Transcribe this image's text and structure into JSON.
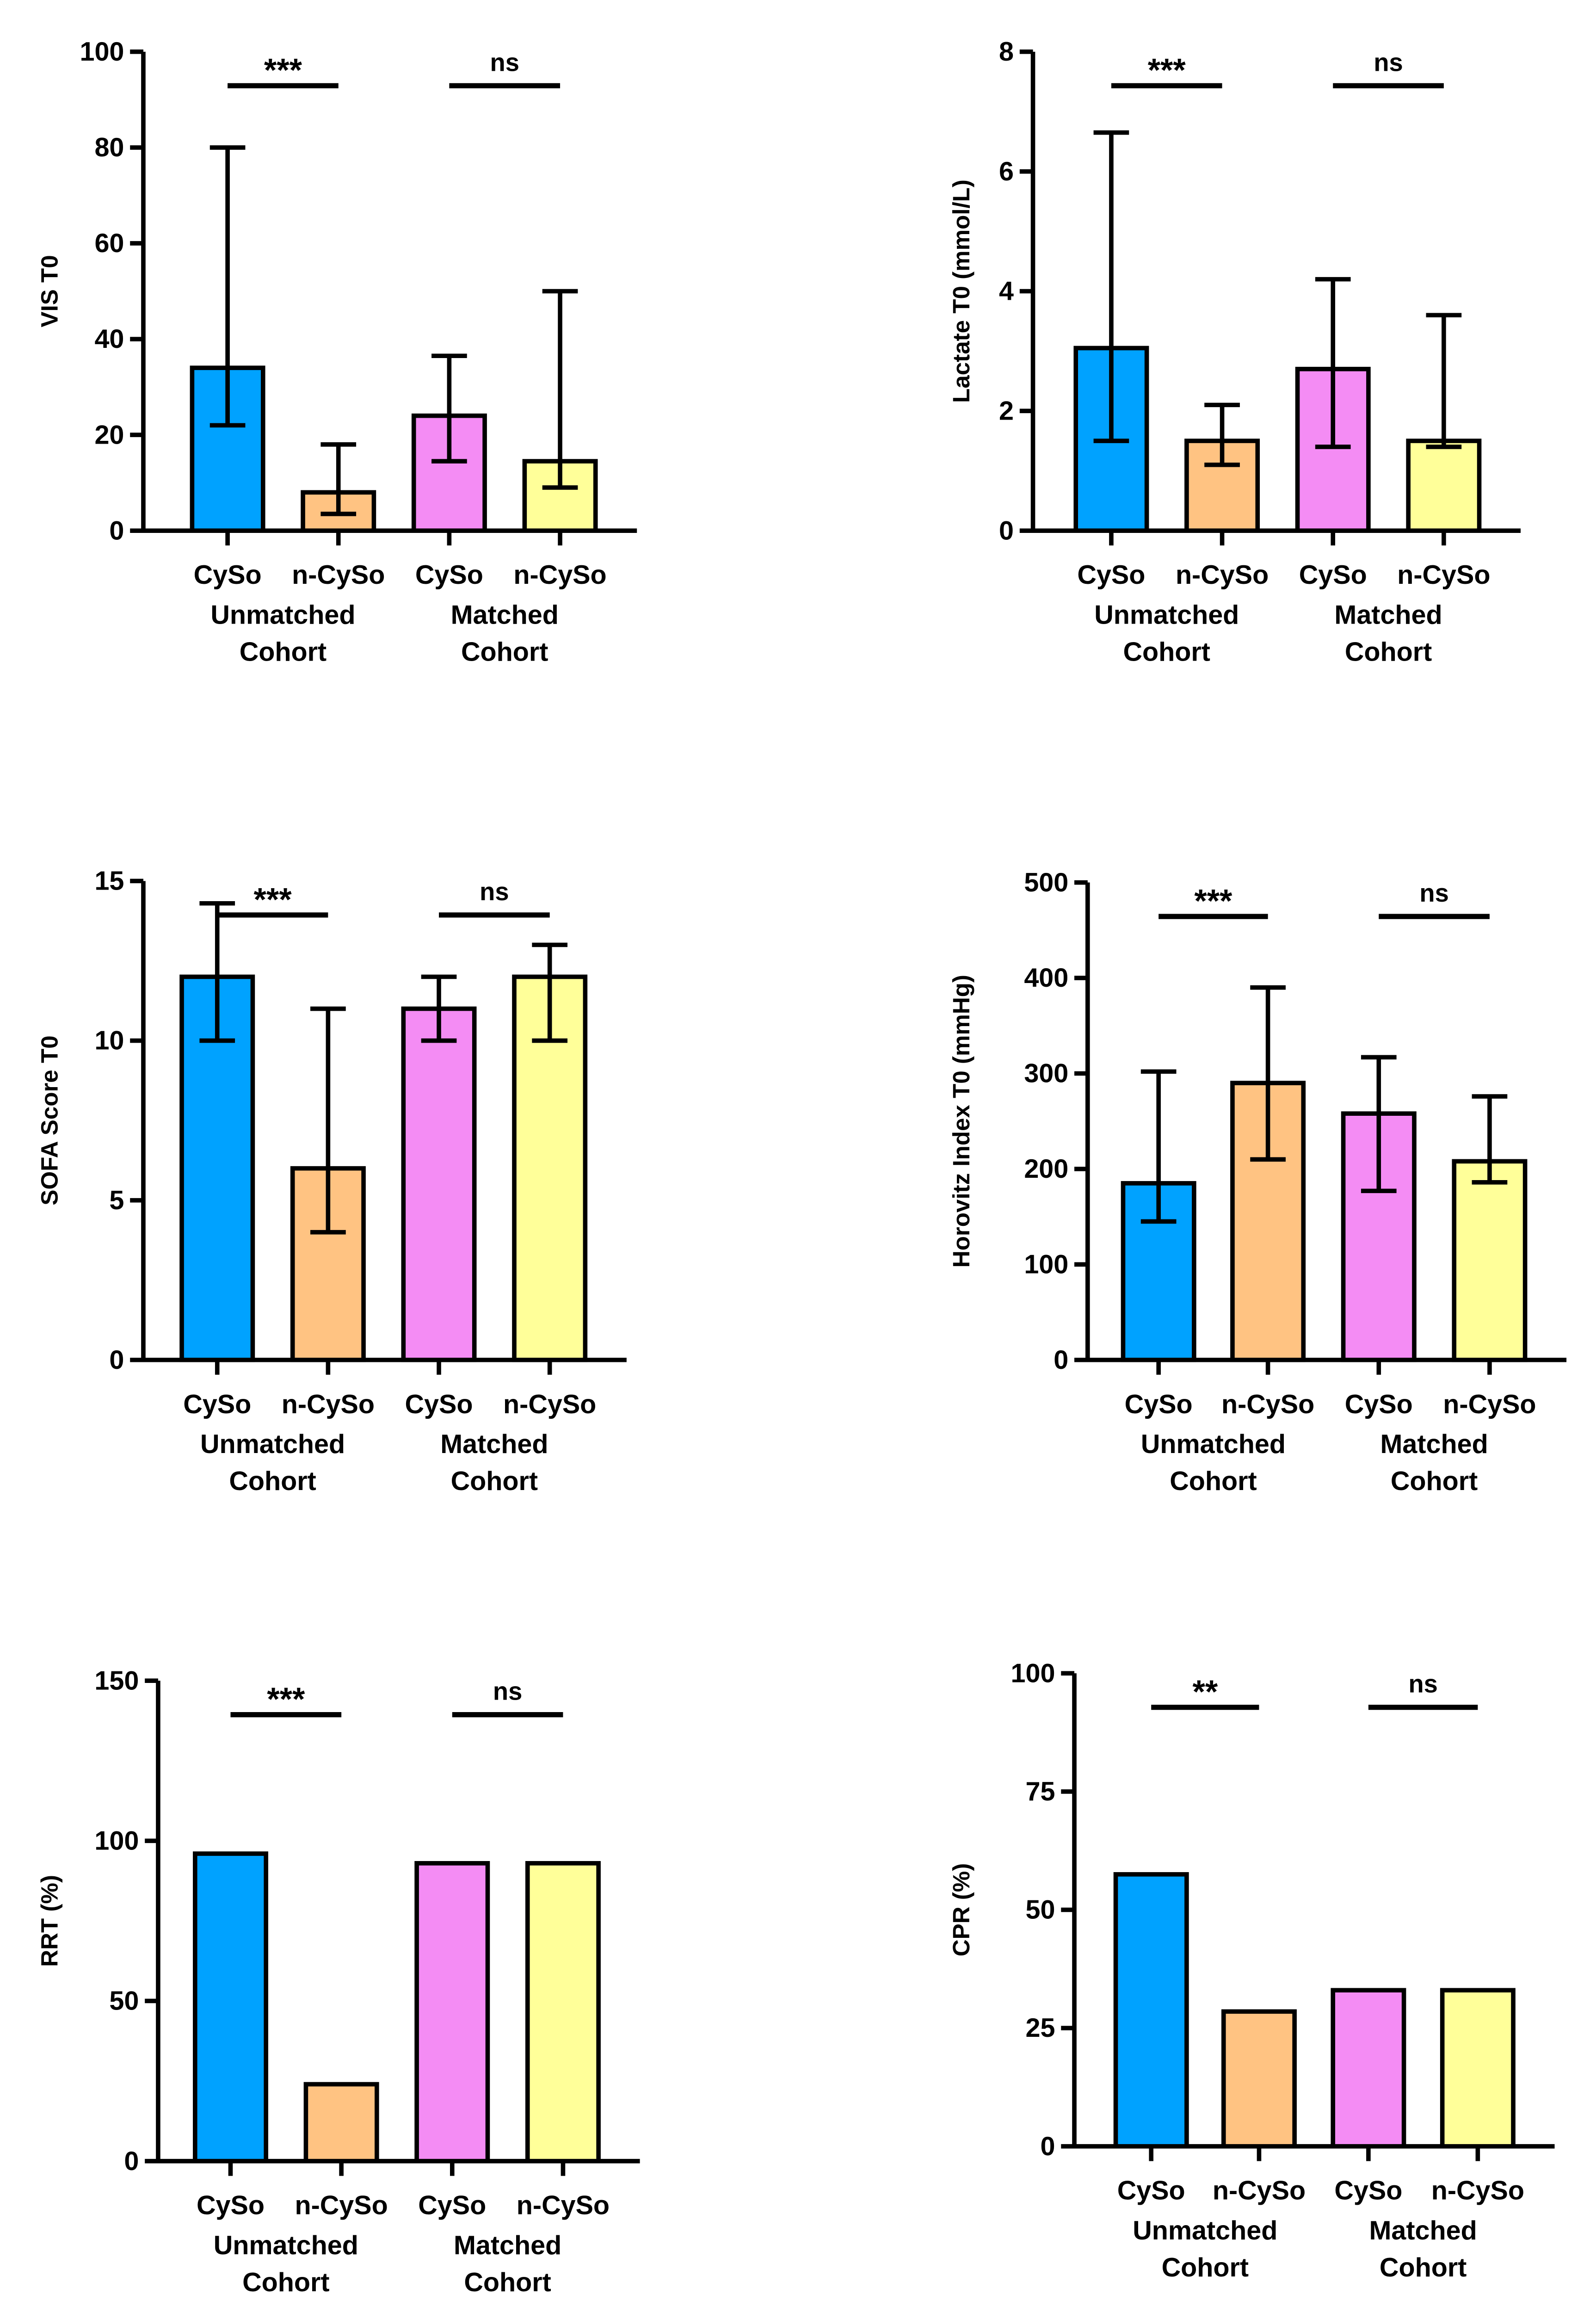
{
  "colors": {
    "cyso_unmatched": "#00a2ff",
    "ncyso_unmatched": "#ffc382",
    "cyso_matched": "#f48cf4",
    "ncyso_matched": "#ffff99",
    "stroke": "#000000"
  },
  "chart_data": [
    {
      "type": "bar",
      "ylabel": "VIS T0",
      "ylim": [
        0,
        100
      ],
      "yticks": [
        "0",
        "20",
        "40",
        "60",
        "80",
        "100"
      ],
      "categories": [
        "CySo",
        "n-CySo",
        "CySo",
        "n-CySo"
      ],
      "groups": [
        "Unmatched\nCohort",
        "Matched\nCohort"
      ],
      "values": [
        34,
        8,
        24,
        14.5
      ],
      "error_low": [
        22,
        3.5,
        14.5,
        9
      ],
      "error_high": [
        80,
        18,
        36.5,
        50
      ],
      "significance": [
        "***",
        "ns"
      ]
    },
    {
      "type": "bar",
      "ylabel": "Lactate T0 (mmol/L)",
      "ylim": [
        0,
        8
      ],
      "yticks": [
        "0",
        "2",
        "4",
        "6",
        "8"
      ],
      "categories": [
        "CySo",
        "n-CySo",
        "CySo",
        "n-CySo"
      ],
      "groups": [
        "Unmatched\nCohort",
        "Matched\nCohort"
      ],
      "values": [
        3.05,
        1.5,
        2.7,
        1.5
      ],
      "error_low": [
        1.5,
        1.1,
        1.4,
        1.4
      ],
      "error_high": [
        6.65,
        2.1,
        4.2,
        3.6
      ],
      "significance": [
        "***",
        "ns"
      ]
    },
    {
      "type": "bar",
      "ylabel": "SOFA Score T0",
      "ylim": [
        0,
        15
      ],
      "yticks": [
        "0",
        "5",
        "10",
        "15"
      ],
      "categories": [
        "CySo",
        "n-CySo",
        "CySo",
        "n-CySo"
      ],
      "groups": [
        "Unmatched\nCohort",
        "Matched\nCohort"
      ],
      "values": [
        12,
        6,
        11,
        12
      ],
      "error_low": [
        10,
        4,
        10,
        10
      ],
      "error_high": [
        14.3,
        11,
        12,
        13
      ],
      "significance": [
        "***",
        "ns"
      ]
    },
    {
      "type": "bar",
      "ylabel": "Horovitz  Index T0 (mmHg)",
      "ylim": [
        0,
        500
      ],
      "yticks": [
        "0",
        "100",
        "200",
        "300",
        "400",
        "500"
      ],
      "categories": [
        "CySo",
        "n-CySo",
        "CySo",
        "n-CySo"
      ],
      "groups": [
        "Unmatched\nCohort",
        "Matched\nCohort"
      ],
      "values": [
        185,
        290,
        258,
        208
      ],
      "error_low": [
        145,
        210,
        177,
        186
      ],
      "error_high": [
        302,
        390,
        317,
        276
      ],
      "significance": [
        "***",
        "ns"
      ]
    },
    {
      "type": "bar",
      "ylabel": "RRT (%)",
      "ylim": [
        0,
        150
      ],
      "yticks": [
        "0",
        "50",
        "100",
        "150"
      ],
      "categories": [
        "CySo",
        "n-CySo",
        "CySo",
        "n-CySo"
      ],
      "groups": [
        "Unmatched\nCohort",
        "Matched\nCohort"
      ],
      "values": [
        96,
        24,
        93,
        93
      ],
      "significance": [
        "***",
        "ns"
      ]
    },
    {
      "type": "bar",
      "ylabel": "CPR (%)",
      "ylim": [
        0,
        100
      ],
      "yticks": [
        "0",
        "25",
        "50",
        "75",
        "100"
      ],
      "categories": [
        "CySo",
        "n-CySo",
        "CySo",
        "n-CySo"
      ],
      "groups": [
        "Unmatched\nCohort",
        "Matched\nCohort"
      ],
      "values": [
        57.5,
        28.5,
        33,
        33
      ],
      "significance": [
        "**",
        "ns"
      ]
    }
  ]
}
